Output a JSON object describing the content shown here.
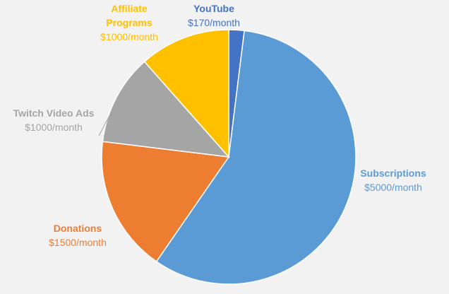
{
  "chart_data": {
    "type": "pie",
    "slices": [
      {
        "name": "YouTube",
        "amount_label": "$170/month",
        "value": 170,
        "color": "#4472c4"
      },
      {
        "name": "Subscriptions",
        "amount_label": "$5000/month",
        "value": 5000,
        "color": "#5b9bd5"
      },
      {
        "name": "Donations",
        "amount_label": "$1500/month",
        "value": 1500,
        "color": "#ed7d31"
      },
      {
        "name": "Twitch Video Ads",
        "amount_label": "$1000/month",
        "value": 1000,
        "color": "#a5a5a5"
      },
      {
        "name": "Affiliate Programs",
        "amount_label": "$1000/month",
        "value": 1000,
        "color": "#ffc000"
      }
    ],
    "legend": "none",
    "label_position": "outside"
  }
}
